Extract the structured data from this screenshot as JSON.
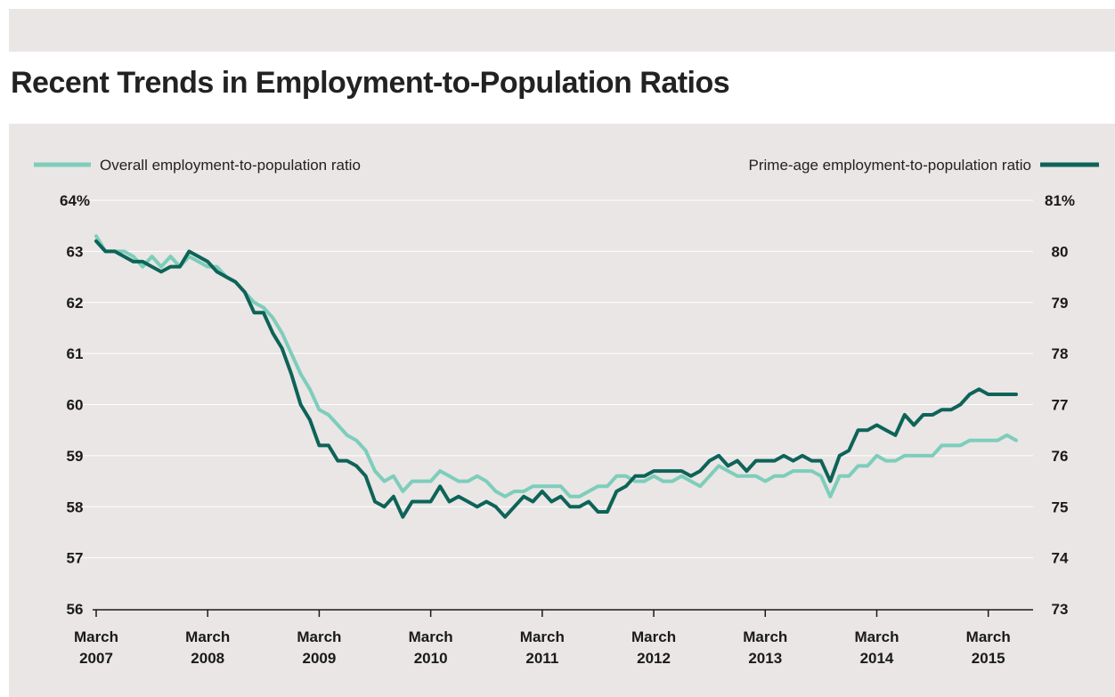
{
  "header": {
    "title": "Recent Trends in Employment-to-Population Ratios"
  },
  "colors": {
    "overall": "#7ecdbb",
    "prime_age": "#0e6358"
  },
  "chart_data": {
    "type": "line",
    "title": "Recent Trends in Employment-to-Population Ratios",
    "x_start": "2007-03",
    "x_frequency": "monthly",
    "x_ticks": [
      {
        "month": "2007-03",
        "line1": "March",
        "line2": "2007"
      },
      {
        "month": "2008-03",
        "line1": "March",
        "line2": "2008"
      },
      {
        "month": "2009-03",
        "line1": "March",
        "line2": "2009"
      },
      {
        "month": "2010-03",
        "line1": "March",
        "line2": "2010"
      },
      {
        "month": "2011-03",
        "line1": "March",
        "line2": "2011"
      },
      {
        "month": "2012-03",
        "line1": "March",
        "line2": "2012"
      },
      {
        "month": "2013-03",
        "line1": "March",
        "line2": "2013"
      },
      {
        "month": "2014-03",
        "line1": "March",
        "line2": "2014"
      },
      {
        "month": "2015-03",
        "line1": "March",
        "line2": "2015"
      }
    ],
    "y_left": {
      "ylim": [
        56,
        64
      ],
      "ticks": [
        "56",
        "57",
        "58",
        "59",
        "60",
        "61",
        "62",
        "63",
        "64%"
      ]
    },
    "y_right": {
      "ylim": [
        73,
        81
      ],
      "ticks": [
        "73",
        "74",
        "75",
        "76",
        "77",
        "78",
        "79",
        "80",
        "81%"
      ]
    },
    "grid": true,
    "series": [
      {
        "name": "Overall employment-to-population ratio",
        "axis": "left",
        "legend_position": "top-left",
        "values": [
          63.3,
          63.0,
          63.0,
          63.0,
          62.9,
          62.7,
          62.9,
          62.7,
          62.9,
          62.7,
          62.9,
          62.8,
          62.7,
          62.7,
          62.5,
          62.4,
          62.2,
          62.0,
          61.9,
          61.7,
          61.4,
          61.0,
          60.6,
          60.3,
          59.9,
          59.8,
          59.6,
          59.4,
          59.3,
          59.1,
          58.7,
          58.5,
          58.6,
          58.3,
          58.5,
          58.5,
          58.5,
          58.7,
          58.6,
          58.5,
          58.5,
          58.6,
          58.5,
          58.3,
          58.2,
          58.3,
          58.3,
          58.4,
          58.4,
          58.4,
          58.4,
          58.2,
          58.2,
          58.3,
          58.4,
          58.4,
          58.6,
          58.6,
          58.5,
          58.5,
          58.6,
          58.5,
          58.5,
          58.6,
          58.5,
          58.4,
          58.6,
          58.8,
          58.7,
          58.6,
          58.6,
          58.6,
          58.5,
          58.6,
          58.6,
          58.7,
          58.7,
          58.7,
          58.6,
          58.2,
          58.6,
          58.6,
          58.8,
          58.8,
          59.0,
          58.9,
          58.9,
          59.0,
          59.0,
          59.0,
          59.0,
          59.2,
          59.2,
          59.2,
          59.3,
          59.3,
          59.3,
          59.3,
          59.4,
          59.3
        ]
      },
      {
        "name": "Prime-age employment-to-population ratio",
        "axis": "right",
        "legend_position": "top-right",
        "values": [
          80.2,
          80.0,
          80.0,
          79.9,
          79.8,
          79.8,
          79.7,
          79.6,
          79.7,
          79.7,
          80.0,
          79.9,
          79.8,
          79.6,
          79.5,
          79.4,
          79.2,
          78.8,
          78.8,
          78.4,
          78.1,
          77.6,
          77.0,
          76.7,
          76.2,
          76.2,
          75.9,
          75.9,
          75.8,
          75.6,
          75.1,
          75.0,
          75.2,
          74.8,
          75.1,
          75.1,
          75.1,
          75.4,
          75.1,
          75.2,
          75.1,
          75.0,
          75.1,
          75.0,
          74.8,
          75.0,
          75.2,
          75.1,
          75.3,
          75.1,
          75.2,
          75.0,
          75.0,
          75.1,
          74.9,
          74.9,
          75.3,
          75.4,
          75.6,
          75.6,
          75.7,
          75.7,
          75.7,
          75.7,
          75.6,
          75.7,
          75.9,
          76.0,
          75.8,
          75.9,
          75.7,
          75.9,
          75.9,
          75.9,
          76.0,
          75.9,
          76.0,
          75.9,
          75.9,
          75.5,
          76.0,
          76.1,
          76.5,
          76.5,
          76.6,
          76.5,
          76.4,
          76.8,
          76.6,
          76.8,
          76.8,
          76.9,
          76.9,
          77.0,
          77.2,
          77.3,
          77.2,
          77.2,
          77.2,
          77.2
        ]
      }
    ]
  }
}
